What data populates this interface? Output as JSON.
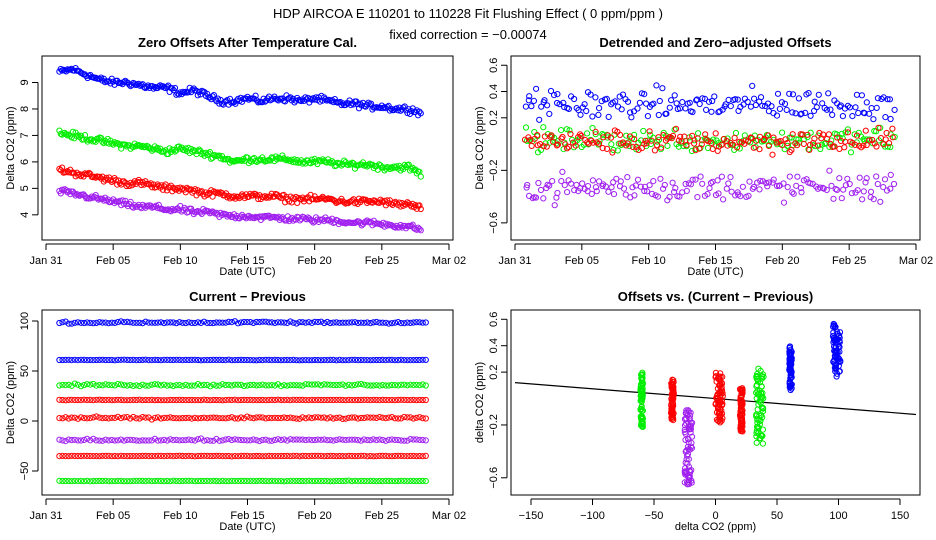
{
  "header": {
    "title": "HDP    AIRCOA E    110201 to 110228    Fit Flushing Effect ( 0 ppm/ppm )",
    "subtitle": "fixed correction = −0.00074"
  },
  "colors": {
    "blue": "#0000ff",
    "green": "#00ee00",
    "red": "#ff0000",
    "purple": "#a020f0",
    "axis": "#000000",
    "fit_line": "#000000"
  },
  "chart_data": [
    {
      "type": "scatter",
      "title": "Zero Offsets After Temperature Cal.",
      "xlabel": "Date (UTC)",
      "ylabel": "Delta CO2 (ppm)",
      "xlim": [
        0,
        30
      ],
      "ylim": [
        3.2,
        9.85
      ],
      "xticks": [
        {
          "v": 0,
          "label": "Jan 31"
        },
        {
          "v": 5,
          "label": "Feb 05"
        },
        {
          "v": 10,
          "label": "Feb 10"
        },
        {
          "v": 15,
          "label": "Feb 15"
        },
        {
          "v": 20,
          "label": "Feb 20"
        },
        {
          "v": 25,
          "label": "Feb 25"
        },
        {
          "v": 30,
          "label": "Mar 02"
        }
      ],
      "yticks": [
        {
          "v": 4,
          "label": "4"
        },
        {
          "v": 5,
          "label": "5"
        },
        {
          "v": 6,
          "label": "6"
        },
        {
          "v": 7,
          "label": "7"
        },
        {
          "v": 8,
          "label": "8"
        },
        {
          "v": 9,
          "label": "9"
        }
      ],
      "series": [
        {
          "name": "blue",
          "color": "#0000ff",
          "x": [
            1,
            2,
            3,
            4,
            5,
            6,
            7,
            8,
            9,
            10,
            11,
            12,
            13,
            14,
            15,
            16,
            17,
            18,
            19,
            20,
            21,
            22,
            23,
            24,
            25,
            26,
            27,
            28
          ],
          "y": [
            9.4,
            9.5,
            9.3,
            9.1,
            9.0,
            9.0,
            8.9,
            8.8,
            8.8,
            8.6,
            8.7,
            8.5,
            8.3,
            8.3,
            8.4,
            8.3,
            8.4,
            8.4,
            8.3,
            8.4,
            8.3,
            8.2,
            8.2,
            8.1,
            8.1,
            8.0,
            8.0,
            7.85
          ],
          "spread": 0.18
        },
        {
          "name": "green",
          "color": "#00ee00",
          "x": [
            1,
            2,
            3,
            4,
            5,
            6,
            7,
            8,
            9,
            10,
            11,
            12,
            13,
            14,
            15,
            16,
            17,
            18,
            19,
            20,
            21,
            22,
            23,
            24,
            25,
            26,
            27,
            28
          ],
          "y": [
            7.1,
            7.0,
            6.9,
            6.8,
            6.7,
            6.6,
            6.6,
            6.5,
            6.4,
            6.5,
            6.4,
            6.3,
            6.2,
            6.0,
            6.1,
            6.1,
            6.1,
            6.1,
            6.0,
            6.0,
            6.0,
            5.9,
            5.9,
            5.9,
            5.8,
            5.8,
            5.8,
            5.5
          ],
          "spread": 0.18
        },
        {
          "name": "red",
          "color": "#ff0000",
          "x": [
            1,
            2,
            3,
            4,
            5,
            6,
            7,
            8,
            9,
            10,
            11,
            12,
            13,
            14,
            15,
            16,
            17,
            18,
            19,
            20,
            21,
            22,
            23,
            24,
            25,
            26,
            27,
            28
          ],
          "y": [
            5.7,
            5.6,
            5.5,
            5.4,
            5.3,
            5.2,
            5.2,
            5.1,
            5.0,
            5.0,
            4.9,
            4.8,
            4.8,
            4.7,
            4.7,
            4.7,
            4.7,
            4.6,
            4.6,
            4.6,
            4.6,
            4.5,
            4.5,
            4.5,
            4.5,
            4.4,
            4.4,
            4.2
          ],
          "spread": 0.18
        },
        {
          "name": "purple",
          "color": "#a020f0",
          "x": [
            1,
            2,
            3,
            4,
            5,
            6,
            7,
            8,
            9,
            10,
            11,
            12,
            13,
            14,
            15,
            16,
            17,
            18,
            19,
            20,
            21,
            22,
            23,
            24,
            25,
            26,
            27,
            28
          ],
          "y": [
            4.9,
            4.8,
            4.7,
            4.6,
            4.5,
            4.4,
            4.3,
            4.3,
            4.2,
            4.2,
            4.1,
            4.1,
            4.0,
            3.95,
            3.95,
            3.9,
            3.9,
            3.85,
            3.85,
            3.8,
            3.8,
            3.75,
            3.7,
            3.7,
            3.65,
            3.6,
            3.55,
            3.45
          ],
          "spread": 0.16
        }
      ]
    },
    {
      "type": "scatter",
      "title": "Detrended and Zero−adjusted Offsets",
      "xlabel": "Date (UTC)",
      "ylabel": "Delta CO2 (ppm)",
      "xlim": [
        0,
        30
      ],
      "ylim": [
        -0.7,
        0.64
      ],
      "xticks": [
        {
          "v": 0,
          "label": "Jan 31"
        },
        {
          "v": 5,
          "label": "Feb 05"
        },
        {
          "v": 10,
          "label": "Feb 10"
        },
        {
          "v": 15,
          "label": "Feb 15"
        },
        {
          "v": 20,
          "label": "Feb 20"
        },
        {
          "v": 25,
          "label": "Feb 25"
        },
        {
          "v": 30,
          "label": "Mar 02"
        }
      ],
      "yticks": [
        {
          "v": -0.6,
          "label": "−0.6"
        },
        {
          "v": -0.2,
          "label": "−0.2"
        },
        {
          "v": 0.2,
          "label": "0.2"
        },
        {
          "v": 0.4,
          "label": "0.4"
        },
        {
          "v": 0.6,
          "label": "0.6"
        }
      ],
      "series": [
        {
          "name": "blue",
          "color": "#0000ff",
          "center": 0.3,
          "spread": 0.13,
          "xrange": [
            0.8,
            28.5
          ]
        },
        {
          "name": "green",
          "color": "#00ee00",
          "center": 0.03,
          "spread": 0.1,
          "xrange": [
            0.8,
            28.5
          ]
        },
        {
          "name": "red",
          "color": "#ff0000",
          "center": 0.02,
          "spread": 0.1,
          "xrange": [
            0.8,
            28.5
          ]
        },
        {
          "name": "purple",
          "color": "#a020f0",
          "center": -0.33,
          "spread": 0.12,
          "xrange": [
            0.8,
            28.5
          ]
        }
      ]
    },
    {
      "type": "scatter",
      "title": "Current − Previous",
      "xlabel": "Date (UTC)",
      "ylabel": "Delta CO2 (ppm)",
      "xlim": [
        0,
        30
      ],
      "ylim": [
        -70,
        107
      ],
      "xticks": [
        {
          "v": 0,
          "label": "Jan 31"
        },
        {
          "v": 5,
          "label": "Feb 05"
        },
        {
          "v": 10,
          "label": "Feb 10"
        },
        {
          "v": 15,
          "label": "Feb 15"
        },
        {
          "v": 20,
          "label": "Feb 20"
        },
        {
          "v": 25,
          "label": "Feb 25"
        },
        {
          "v": 30,
          "label": "Mar 02"
        }
      ],
      "yticks": [
        {
          "v": -50,
          "label": "−50"
        },
        {
          "v": 0,
          "label": "0"
        },
        {
          "v": 50,
          "label": "50"
        },
        {
          "v": 100,
          "label": "100"
        }
      ],
      "series": [
        {
          "name": "blue",
          "color": "#0000ff",
          "level": 98.5,
          "spread": 1.6,
          "xrange": [
            1,
            28.5
          ]
        },
        {
          "name": "blue",
          "color": "#0000ff",
          "level": 61,
          "spread": 0.4,
          "xrange": [
            1,
            28.5
          ]
        },
        {
          "name": "green",
          "color": "#00ee00",
          "level": 36,
          "spread": 1.6,
          "xrange": [
            1,
            28.5
          ]
        },
        {
          "name": "red",
          "color": "#ff0000",
          "level": 21,
          "spread": 0.4,
          "xrange": [
            1,
            28.5
          ]
        },
        {
          "name": "red",
          "color": "#ff0000",
          "level": 3,
          "spread": 1.6,
          "xrange": [
            1,
            28.5
          ]
        },
        {
          "name": "purple",
          "color": "#a020f0",
          "level": -19,
          "spread": 1.6,
          "xrange": [
            1,
            28.5
          ]
        },
        {
          "name": "red",
          "color": "#ff0000",
          "level": -35,
          "spread": 0.4,
          "xrange": [
            1,
            28.5
          ]
        },
        {
          "name": "green",
          "color": "#00ee00",
          "level": -60,
          "spread": 0.4,
          "xrange": [
            1,
            28.5
          ]
        }
      ]
    },
    {
      "type": "scatter",
      "title": "Offsets vs. (Current − Previous)",
      "xlabel": "delta CO2 (ppm)",
      "ylabel": "delta CO2 (ppm)",
      "xlim": [
        -163,
        163
      ],
      "ylim": [
        -0.7,
        0.64
      ],
      "xticks": [
        {
          "v": -150,
          "label": "−150"
        },
        {
          "v": -100,
          "label": "−100"
        },
        {
          "v": -50,
          "label": "−50"
        },
        {
          "v": 0,
          "label": "0"
        },
        {
          "v": 50,
          "label": "50"
        },
        {
          "v": 100,
          "label": "100"
        },
        {
          "v": 150,
          "label": "150"
        }
      ],
      "yticks": [
        {
          "v": -0.6,
          "label": "−0.6"
        },
        {
          "v": -0.2,
          "label": "−0.2"
        },
        {
          "v": 0.2,
          "label": "0.2"
        },
        {
          "v": 0.4,
          "label": "0.4"
        },
        {
          "v": 0.6,
          "label": "0.6"
        }
      ],
      "fit_line": {
        "slope": -0.00074,
        "intercept": 0.0
      },
      "clusters": [
        {
          "color": "#00ee00",
          "x": -60,
          "ymin": -0.22,
          "ymax": 0.2,
          "xspread": 1
        },
        {
          "color": "#ff0000",
          "x": -35,
          "ymin": -0.17,
          "ymax": 0.15,
          "xspread": 1
        },
        {
          "color": "#a020f0",
          "x": -22,
          "ymin": -0.65,
          "ymax": -0.08,
          "xspread": 3
        },
        {
          "color": "#ff0000",
          "x": 3,
          "ymin": -0.2,
          "ymax": 0.2,
          "xspread": 3
        },
        {
          "color": "#ff0000",
          "x": 21,
          "ymin": -0.25,
          "ymax": 0.1,
          "xspread": 1
        },
        {
          "color": "#00ee00",
          "x": 36,
          "ymin": -0.35,
          "ymax": 0.25,
          "xspread": 3
        },
        {
          "color": "#0000ff",
          "x": 61,
          "ymin": 0.05,
          "ymax": 0.4,
          "xspread": 1
        },
        {
          "color": "#0000ff",
          "x": 98.5,
          "ymin": 0.15,
          "ymax": 0.57,
          "xspread": 3
        }
      ]
    }
  ]
}
